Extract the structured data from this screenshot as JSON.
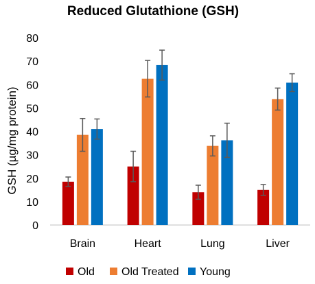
{
  "chart_data": {
    "type": "bar",
    "title": "Reduced Glutathione (GSH)",
    "xlabel": "",
    "ylabel": "GSH (µg/mg protein)",
    "ylim": [
      0,
      80
    ],
    "yticks": [
      "0",
      "10",
      "20",
      "30",
      "40",
      "50",
      "60",
      "70",
      "80"
    ],
    "categories": [
      "Brain",
      "Heart",
      "Lung",
      "Liver"
    ],
    "series": [
      {
        "name": "Old",
        "color": "#c00000",
        "values": [
          18.5,
          25,
          14,
          15
        ],
        "errors": [
          2,
          6.5,
          3,
          2.3
        ]
      },
      {
        "name": "Old Treated",
        "color": "#ed7d31",
        "values": [
          38.5,
          62.5,
          33.8,
          53.8
        ],
        "errors": [
          7,
          7.8,
          4.3,
          4.7
        ]
      },
      {
        "name": "Young",
        "color": "#0070c0",
        "values": [
          41,
          68.3,
          36.2,
          60.8
        ],
        "errors": [
          4.3,
          6.4,
          7.3,
          3.8
        ]
      }
    ],
    "grid": false,
    "legend_position": "bottom"
  }
}
